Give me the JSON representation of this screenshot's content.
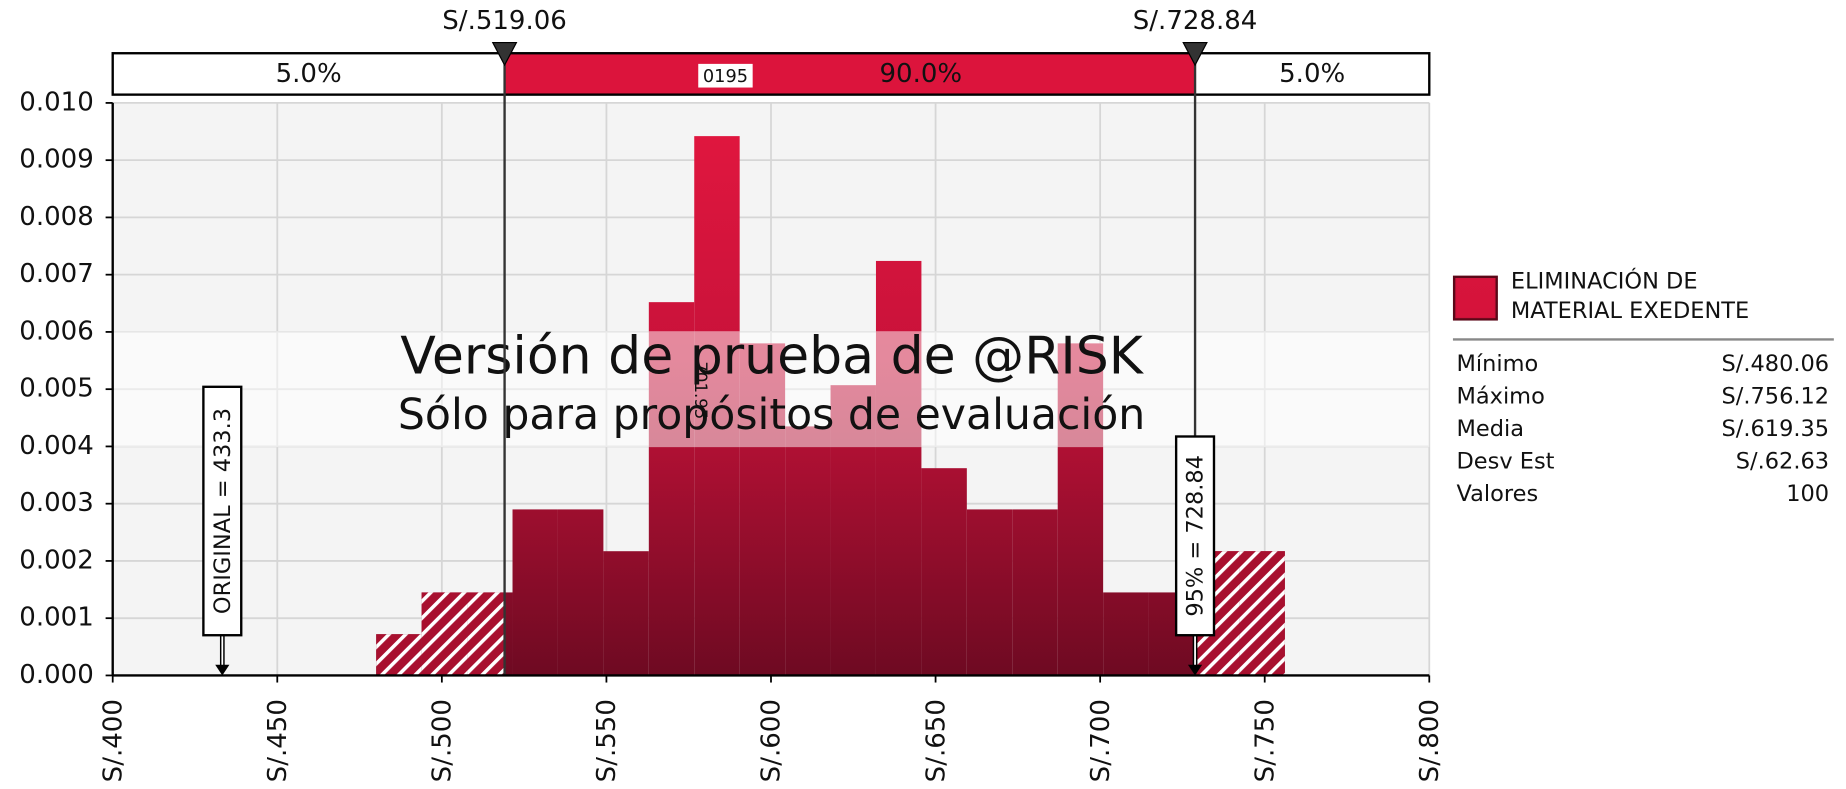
{
  "chart_data": {
    "type": "histogram",
    "bins": [
      480.06,
      493.86,
      507.67,
      521.47,
      535.27,
      549.08,
      562.88,
      576.68,
      590.48,
      604.29,
      618.09,
      631.89,
      645.7,
      659.5,
      673.3,
      687.11,
      700.91,
      714.71,
      728.52,
      742.32,
      756.12
    ],
    "series": [
      {
        "name": "ELIMINACIÓN DE MATERIAL EXEDENTE",
        "color": "#dc143c",
        "values": [
          0.00072,
          0.00145,
          0.00145,
          0.0029,
          0.0029,
          0.00217,
          0.00652,
          0.00942,
          0.0058,
          0.00435,
          0.00507,
          0.00724,
          0.00362,
          0.0029,
          0.0029,
          0.0058,
          0.00145,
          0.00145,
          0.00217,
          0.00217
        ]
      }
    ],
    "xlim": [
      400,
      800
    ],
    "xticks": [
      {
        "value": 400,
        "label": "S/.400"
      },
      {
        "value": 450,
        "label": "S/.450"
      },
      {
        "value": 500,
        "label": "S/.500"
      },
      {
        "value": 550,
        "label": "S/.550"
      },
      {
        "value": 600,
        "label": "S/.600"
      },
      {
        "value": 650,
        "label": "S/.650"
      },
      {
        "value": 700,
        "label": "S/.700"
      },
      {
        "value": 750,
        "label": "S/.750"
      },
      {
        "value": 800,
        "label": "S/.800"
      }
    ],
    "ylim": [
      0,
      0.01
    ],
    "yticks": [
      {
        "value": 0,
        "label": "0.000"
      },
      {
        "value": 0.001,
        "label": "0.001"
      },
      {
        "value": 0.002,
        "label": "0.002"
      },
      {
        "value": 0.003,
        "label": "0.003"
      },
      {
        "value": 0.004,
        "label": "0.004"
      },
      {
        "value": 0.005,
        "label": "0.005"
      },
      {
        "value": 0.006,
        "label": "0.006"
      },
      {
        "value": 0.007,
        "label": "0.007"
      },
      {
        "value": 0.008,
        "label": "0.008"
      },
      {
        "value": 0.009,
        "label": "0.009"
      },
      {
        "value": 0.01,
        "label": "0.010"
      }
    ],
    "grid": true,
    "delimiters": {
      "values": [
        519.06,
        728.84
      ],
      "value_labels": [
        "S/.519.06",
        "S/.728.84"
      ]
    },
    "regions": {
      "values": [
        5,
        90,
        5
      ],
      "value_labels": [
        "5.0%",
        "90.0%",
        "5.0%"
      ]
    },
    "annotations": [
      {
        "x": 433.3,
        "label": "ORIGINAL = 433.3"
      },
      {
        "x": 728.84,
        "label": "95% = 728.84"
      }
    ],
    "overlay_labels": [
      "0195",
      "701.95"
    ],
    "watermark": [
      "Versión de prueba de @RISK",
      "Sólo para propósitos de evaluación"
    ],
    "stats": [
      {
        "label": "Mínimo",
        "value": 480.06,
        "value_label": "S/.480.06"
      },
      {
        "label": "Máximo",
        "value": 756.12,
        "value_label": "S/.756.12"
      },
      {
        "label": "Media",
        "value": 619.35,
        "value_label": "S/.619.35"
      },
      {
        "label": "Desv Est",
        "value": 62.63,
        "value_label": "S/.62.63"
      },
      {
        "label": "Valores",
        "value": 100
      }
    ]
  }
}
